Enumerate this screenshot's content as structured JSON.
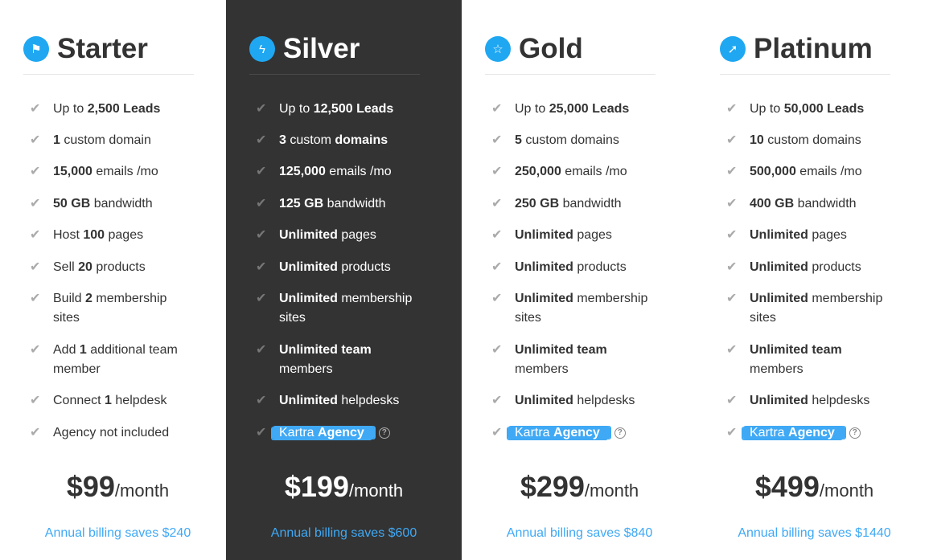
{
  "accent": "#3fa9f5",
  "plans": [
    {
      "name": "Starter",
      "icon": "flag-icon",
      "glyph": "⚑",
      "dark": false,
      "features": [
        [
          {
            "t": "Up to "
          },
          {
            "t": "2,500 Leads",
            "b": 1
          }
        ],
        [
          {
            "t": "1",
            "b": 1
          },
          {
            "t": " custom domain"
          }
        ],
        [
          {
            "t": "15,000",
            "b": 1
          },
          {
            "t": " emails /mo"
          }
        ],
        [
          {
            "t": "50 GB",
            "b": 1
          },
          {
            "t": " bandwidth"
          }
        ],
        [
          {
            "t": "Host "
          },
          {
            "t": "100",
            "b": 1
          },
          {
            "t": " pages"
          }
        ],
        [
          {
            "t": "Sell "
          },
          {
            "t": "20",
            "b": 1
          },
          {
            "t": " products"
          }
        ],
        [
          {
            "t": "Build "
          },
          {
            "t": "2",
            "b": 1
          },
          {
            "t": " membership sites"
          }
        ],
        [
          {
            "t": "Add "
          },
          {
            "t": "1",
            "b": 1
          },
          {
            "t": " additional team member"
          }
        ],
        [
          {
            "t": "Connect "
          },
          {
            "t": "1",
            "b": 1
          },
          {
            "t": " helpdesk"
          }
        ],
        [
          {
            "t": "Agency not included"
          }
        ]
      ],
      "price": "$99",
      "per": "/month",
      "savings": "Annual billing saves $240"
    },
    {
      "name": "Silver",
      "icon": "lightning-icon",
      "glyph": "ϟ",
      "dark": true,
      "features": [
        [
          {
            "t": "Up to "
          },
          {
            "t": "12,500 Leads",
            "b": 1
          }
        ],
        [
          {
            "t": "3",
            "b": 1
          },
          {
            "t": " custom "
          },
          {
            "t": "domains",
            "b": 1
          }
        ],
        [
          {
            "t": "125,000",
            "b": 1
          },
          {
            "t": " emails /mo"
          }
        ],
        [
          {
            "t": "125 GB",
            "b": 1
          },
          {
            "t": " bandwidth"
          }
        ],
        [
          {
            "t": "Unlimited",
            "b": 1
          },
          {
            "t": " pages"
          }
        ],
        [
          {
            "t": "Unlimited",
            "b": 1
          },
          {
            "t": " products"
          }
        ],
        [
          {
            "t": "Unlimited",
            "b": 1
          },
          {
            "t": " membership sites"
          }
        ],
        [
          {
            "t": "Unlimited",
            "b": 1
          },
          {
            "t": " team",
            "b": 1
          },
          {
            "t": " members"
          }
        ],
        [
          {
            "t": "Unlimited",
            "b": 1
          },
          {
            "t": " helpdesks"
          }
        ],
        [
          {
            "t": "Kartra ",
            "badge": 1
          },
          {
            "t": "Agency",
            "b": 1,
            "badge": 1
          }
        ]
      ],
      "price": "$199",
      "per": "/month",
      "savings": "Annual billing saves $600"
    },
    {
      "name": "Gold",
      "icon": "star-icon",
      "glyph": "☆",
      "dark": false,
      "features": [
        [
          {
            "t": "Up to "
          },
          {
            "t": "25,000 Leads",
            "b": 1
          }
        ],
        [
          {
            "t": "5",
            "b": 1
          },
          {
            "t": " custom domains"
          }
        ],
        [
          {
            "t": "250,000",
            "b": 1
          },
          {
            "t": " emails /mo"
          }
        ],
        [
          {
            "t": "250 GB",
            "b": 1
          },
          {
            "t": " bandwidth"
          }
        ],
        [
          {
            "t": "Unlimited",
            "b": 1
          },
          {
            "t": " pages"
          }
        ],
        [
          {
            "t": "Unlimited",
            "b": 1
          },
          {
            "t": " products"
          }
        ],
        [
          {
            "t": "Unlimited",
            "b": 1
          },
          {
            "t": " membership sites"
          }
        ],
        [
          {
            "t": "Unlimited",
            "b": 1
          },
          {
            "t": " team",
            "b": 1
          },
          {
            "t": " members"
          }
        ],
        [
          {
            "t": "Unlimited",
            "b": 1
          },
          {
            "t": " helpdesks"
          }
        ],
        [
          {
            "t": "Kartra ",
            "badge": 1
          },
          {
            "t": "Agency",
            "b": 1,
            "badge": 1
          }
        ]
      ],
      "price": "$299",
      "per": "/month",
      "savings": "Annual billing saves $840"
    },
    {
      "name": "Platinum",
      "icon": "rocket-icon",
      "glyph": "➚",
      "dark": false,
      "features": [
        [
          {
            "t": "Up to "
          },
          {
            "t": "50,000 Leads",
            "b": 1
          }
        ],
        [
          {
            "t": "10",
            "b": 1
          },
          {
            "t": " custom domains"
          }
        ],
        [
          {
            "t": "500,000",
            "b": 1
          },
          {
            "t": " emails /mo"
          }
        ],
        [
          {
            "t": "400 GB",
            "b": 1
          },
          {
            "t": " bandwidth"
          }
        ],
        [
          {
            "t": "Unlimited",
            "b": 1
          },
          {
            "t": " pages"
          }
        ],
        [
          {
            "t": "Unlimited",
            "b": 1
          },
          {
            "t": " products"
          }
        ],
        [
          {
            "t": "Unlimited",
            "b": 1
          },
          {
            "t": " membership sites"
          }
        ],
        [
          {
            "t": "Unlimited",
            "b": 1
          },
          {
            "t": " team",
            "b": 1
          },
          {
            "t": " members"
          }
        ],
        [
          {
            "t": "Unlimited",
            "b": 1
          },
          {
            "t": " helpdesks"
          }
        ],
        [
          {
            "t": "Kartra ",
            "badge": 1
          },
          {
            "t": "Agency",
            "b": 1,
            "badge": 1
          }
        ]
      ],
      "price": "$499",
      "per": "/month",
      "savings": "Annual billing saves $1440"
    }
  ]
}
